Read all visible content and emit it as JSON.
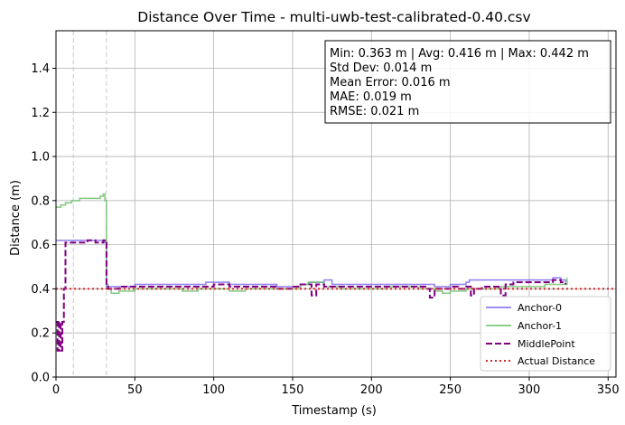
{
  "chart_data": {
    "type": "line",
    "title": "Distance Over Time - multi-uwb-test-calibrated-0.40.csv",
    "xlabel": "Timestamp (s)",
    "ylabel": "Distance (m)",
    "xlim": [
      0,
      355
    ],
    "ylim": [
      0,
      1.57
    ],
    "xticks": [
      0,
      50,
      100,
      150,
      200,
      250,
      300,
      350
    ],
    "yticks": [
      0.0,
      0.2,
      0.4,
      0.6,
      0.8,
      1.0,
      1.2,
      1.4
    ],
    "xtick_labels": [
      "0",
      "50",
      "100",
      "150",
      "200",
      "250",
      "300",
      "350"
    ],
    "ytick_labels": [
      "0.0",
      "0.2",
      "0.4",
      "0.6",
      "0.8",
      "1.0",
      "1.2",
      "1.4"
    ],
    "grid": true,
    "legend_position": "lower-right",
    "vertical_markers": [
      11,
      32
    ],
    "stats_lines": [
      "Min: 0.363 m | Avg: 0.416 m | Max: 0.442 m",
      "Std Dev: 0.014 m",
      "Mean Error: 0.016 m",
      "MAE: 0.019 m",
      "RMSE: 0.021 m"
    ],
    "series": [
      {
        "name": "Anchor-0",
        "color": "#7b68ee",
        "style": "solid",
        "x": [
          0,
          1,
          2,
          5,
          10,
          15,
          20,
          25,
          30,
          31,
          32,
          33,
          40,
          50,
          60,
          70,
          80,
          90,
          95,
          100,
          110,
          120,
          130,
          140,
          150,
          155,
          160,
          165,
          170,
          175,
          180,
          190,
          200,
          210,
          220,
          230,
          240,
          245,
          250,
          255,
          260,
          262,
          265,
          270,
          280,
          290,
          300,
          310,
          315,
          320,
          323
        ],
        "y": [
          0.62,
          0.62,
          0.62,
          0.62,
          0.62,
          0.62,
          0.62,
          0.62,
          0.62,
          0.61,
          0.41,
          0.41,
          0.41,
          0.42,
          0.42,
          0.42,
          0.42,
          0.42,
          0.43,
          0.43,
          0.42,
          0.42,
          0.42,
          0.41,
          0.41,
          0.42,
          0.43,
          0.43,
          0.44,
          0.42,
          0.42,
          0.42,
          0.42,
          0.42,
          0.42,
          0.42,
          0.41,
          0.41,
          0.42,
          0.42,
          0.43,
          0.44,
          0.44,
          0.44,
          0.44,
          0.44,
          0.44,
          0.44,
          0.45,
          0.44,
          0.43
        ]
      },
      {
        "name": "Anchor-1",
        "color": "#6abf69",
        "style": "solid",
        "x": [
          0,
          3,
          6,
          10,
          15,
          20,
          25,
          28,
          30,
          31,
          32,
          33,
          35,
          40,
          50,
          60,
          70,
          80,
          90,
          100,
          110,
          120,
          130,
          140,
          150,
          155,
          160,
          170,
          180,
          190,
          200,
          210,
          220,
          230,
          240,
          245,
          250,
          255,
          260,
          270,
          280,
          290,
          300,
          310,
          320,
          324
        ],
        "y": [
          0.77,
          0.78,
          0.79,
          0.8,
          0.81,
          0.81,
          0.81,
          0.82,
          0.83,
          0.8,
          0.42,
          0.4,
          0.38,
          0.39,
          0.4,
          0.4,
          0.4,
          0.39,
          0.4,
          0.4,
          0.39,
          0.4,
          0.4,
          0.4,
          0.4,
          0.42,
          0.43,
          0.41,
          0.4,
          0.4,
          0.4,
          0.41,
          0.41,
          0.4,
          0.39,
          0.38,
          0.39,
          0.39,
          0.4,
          0.4,
          0.41,
          0.41,
          0.41,
          0.42,
          0.42,
          0.45
        ]
      },
      {
        "name": "MiddlePoint",
        "color": "#800080",
        "style": "dashed",
        "x": [
          0,
          1,
          2,
          3,
          4,
          5,
          6,
          7,
          8,
          10,
          15,
          20,
          25,
          30,
          31,
          32,
          33,
          40,
          50,
          60,
          70,
          80,
          90,
          100,
          110,
          120,
          130,
          140,
          150,
          155,
          160,
          162,
          165,
          170,
          180,
          190,
          200,
          210,
          220,
          230,
          235,
          237,
          240,
          245,
          250,
          255,
          260,
          263,
          265,
          270,
          275,
          280,
          282,
          285,
          290,
          300,
          310,
          315,
          320,
          323
        ],
        "y": [
          0.25,
          0.12,
          0.25,
          0.12,
          0.25,
          0.4,
          0.61,
          0.61,
          0.61,
          0.61,
          0.61,
          0.62,
          0.61,
          0.62,
          0.61,
          0.41,
          0.4,
          0.41,
          0.41,
          0.41,
          0.41,
          0.41,
          0.41,
          0.42,
          0.41,
          0.41,
          0.41,
          0.4,
          0.41,
          0.42,
          0.42,
          0.37,
          0.42,
          0.41,
          0.41,
          0.41,
          0.41,
          0.41,
          0.41,
          0.41,
          0.4,
          0.36,
          0.4,
          0.4,
          0.41,
          0.4,
          0.41,
          0.37,
          0.4,
          0.41,
          0.41,
          0.41,
          0.37,
          0.42,
          0.43,
          0.43,
          0.43,
          0.44,
          0.43,
          0.42
        ]
      },
      {
        "name": "Actual Distance",
        "color": "#d62728",
        "style": "dotted",
        "x": [
          0,
          355
        ],
        "y": [
          0.4,
          0.4
        ]
      }
    ]
  }
}
